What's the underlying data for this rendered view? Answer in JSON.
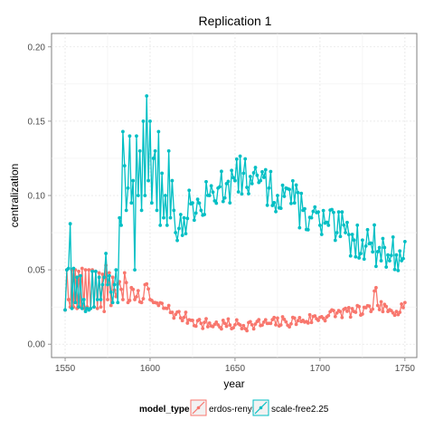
{
  "chart_data": {
    "type": "line",
    "title": "Replication 1",
    "xlabel": "year",
    "ylabel": "centralization",
    "xlim": [
      1542,
      1757
    ],
    "ylim": [
      -0.009,
      0.209
    ],
    "x_ticks": [
      1550,
      1600,
      1650,
      1700,
      1750
    ],
    "y_ticks": [
      0.0,
      0.05,
      0.1,
      0.15,
      0.2
    ],
    "x_tick_labels": [
      "1550",
      "1600",
      "1650",
      "1700",
      "1750"
    ],
    "y_tick_labels": [
      "0.00",
      "0.05",
      "0.10",
      "0.15",
      "0.20"
    ],
    "grid": true,
    "legend": {
      "title": "model_type",
      "position": "bottom",
      "entries": [
        "erdos-renyi",
        "scale-free2.25"
      ]
    },
    "colors": [
      "#F8766D",
      "#00BFC4"
    ],
    "series": [
      {
        "name": "erdos-renyi",
        "keypoints": [
          [
            1550,
            0.023
          ],
          [
            1551,
            0.05
          ],
          [
            1552,
            0.03
          ],
          [
            1553,
            0.025
          ],
          [
            1554,
            0.05
          ],
          [
            1555,
            0.025
          ],
          [
            1556,
            0.05
          ],
          [
            1557,
            0.024
          ],
          [
            1558,
            0.049
          ],
          [
            1559,
            0.025
          ],
          [
            1560,
            0.051
          ],
          [
            1561,
            0.024
          ],
          [
            1562,
            0.05
          ],
          [
            1563,
            0.025
          ],
          [
            1564,
            0.05
          ],
          [
            1565,
            0.024
          ],
          [
            1566,
            0.05
          ],
          [
            1567,
            0.025
          ],
          [
            1568,
            0.049
          ],
          [
            1569,
            0.024
          ],
          [
            1570,
            0.048
          ],
          [
            1571,
            0.025
          ],
          [
            1572,
            0.047
          ],
          [
            1573,
            0.022
          ],
          [
            1574,
            0.053
          ],
          [
            1575,
            0.03
          ],
          [
            1576,
            0.048
          ],
          [
            1577,
            0.026
          ],
          [
            1578,
            0.045
          ],
          [
            1580,
            0.032
          ],
          [
            1582,
            0.042
          ],
          [
            1584,
            0.03
          ],
          [
            1585,
            0.048
          ],
          [
            1587,
            0.028
          ],
          [
            1589,
            0.038
          ],
          [
            1591,
            0.03
          ],
          [
            1593,
            0.036
          ],
          [
            1595,
            0.028
          ],
          [
            1597,
            0.04
          ],
          [
            1600,
            0.03
          ],
          [
            1605,
            0.026
          ],
          [
            1610,
            0.024
          ],
          [
            1615,
            0.02
          ],
          [
            1620,
            0.018
          ],
          [
            1625,
            0.016
          ],
          [
            1630,
            0.014
          ],
          [
            1640,
            0.013
          ],
          [
            1650,
            0.013
          ],
          [
            1660,
            0.013
          ],
          [
            1670,
            0.014
          ],
          [
            1680,
            0.015
          ],
          [
            1690,
            0.016
          ],
          [
            1700,
            0.018
          ],
          [
            1710,
            0.021
          ],
          [
            1720,
            0.022
          ],
          [
            1730,
            0.022
          ],
          [
            1733,
            0.038
          ],
          [
            1734,
            0.026
          ],
          [
            1740,
            0.022
          ],
          [
            1745,
            0.022
          ],
          [
            1748,
            0.027
          ],
          [
            1750,
            0.028
          ]
        ],
        "noise": 0.004,
        "seed": 7
      },
      {
        "name": "scale-free2.25",
        "keypoints": [
          [
            1550,
            0.023
          ],
          [
            1551,
            0.05
          ],
          [
            1552,
            0.051
          ],
          [
            1553,
            0.081
          ],
          [
            1554,
            0.024
          ],
          [
            1555,
            0.051
          ],
          [
            1556,
            0.028
          ],
          [
            1557,
            0.045
          ],
          [
            1558,
            0.025
          ],
          [
            1559,
            0.046
          ],
          [
            1560,
            0.024
          ],
          [
            1561,
            0.03
          ],
          [
            1562,
            0.022
          ],
          [
            1563,
            0.024
          ],
          [
            1564,
            0.023
          ],
          [
            1565,
            0.024
          ],
          [
            1566,
            0.049
          ],
          [
            1567,
            0.025
          ],
          [
            1568,
            0.049
          ],
          [
            1569,
            0.03
          ],
          [
            1570,
            0.045
          ],
          [
            1571,
            0.03
          ],
          [
            1572,
            0.04
          ],
          [
            1573,
            0.045
          ],
          [
            1574,
            0.061
          ],
          [
            1575,
            0.04
          ],
          [
            1576,
            0.046
          ],
          [
            1577,
            0.035
          ],
          [
            1578,
            0.028
          ],
          [
            1579,
            0.04
          ],
          [
            1580,
            0.05
          ],
          [
            1581,
            0.028
          ],
          [
            1582,
            0.085
          ],
          [
            1583,
            0.08
          ],
          [
            1584,
            0.143
          ],
          [
            1585,
            0.12
          ],
          [
            1586,
            0.09
          ],
          [
            1587,
            0.105
          ],
          [
            1588,
            0.14
          ],
          [
            1589,
            0.095
          ],
          [
            1590,
            0.11
          ],
          [
            1591,
            0.05
          ],
          [
            1592,
            0.14
          ],
          [
            1593,
            0.1
          ],
          [
            1594,
            0.13
          ],
          [
            1595,
            0.09
          ],
          [
            1596,
            0.15
          ],
          [
            1597,
            0.1
          ],
          [
            1598,
            0.167
          ],
          [
            1599,
            0.11
          ],
          [
            1600,
            0.15
          ],
          [
            1601,
            0.095
          ],
          [
            1602,
            0.125
          ],
          [
            1603,
            0.13
          ],
          [
            1604,
            0.09
          ],
          [
            1605,
            0.143
          ],
          [
            1606,
            0.08
          ],
          [
            1607,
            0.115
          ],
          [
            1608,
            0.085
          ],
          [
            1609,
            0.1
          ],
          [
            1610,
            0.08
          ],
          [
            1611,
            0.13
          ],
          [
            1612,
            0.085
          ],
          [
            1613,
            0.11
          ],
          [
            1614,
            0.09
          ],
          [
            1615,
            0.075
          ],
          [
            1620,
            0.085
          ],
          [
            1625,
            0.095
          ],
          [
            1630,
            0.09
          ],
          [
            1635,
            0.1
          ],
          [
            1640,
            0.105
          ],
          [
            1645,
            0.108
          ],
          [
            1650,
            0.11
          ],
          [
            1655,
            0.115
          ],
          [
            1660,
            0.108
          ],
          [
            1665,
            0.11
          ],
          [
            1670,
            0.105
          ],
          [
            1675,
            0.1
          ],
          [
            1680,
            0.105
          ],
          [
            1685,
            0.095
          ],
          [
            1690,
            0.09
          ],
          [
            1695,
            0.085
          ],
          [
            1700,
            0.08
          ],
          [
            1705,
            0.08
          ],
          [
            1710,
            0.075
          ],
          [
            1715,
            0.075
          ],
          [
            1720,
            0.07
          ],
          [
            1725,
            0.07
          ],
          [
            1730,
            0.068
          ],
          [
            1735,
            0.065
          ],
          [
            1740,
            0.06
          ],
          [
            1745,
            0.06
          ],
          [
            1750,
            0.069
          ]
        ],
        "noise": 0.014,
        "seed": 13
      }
    ]
  }
}
